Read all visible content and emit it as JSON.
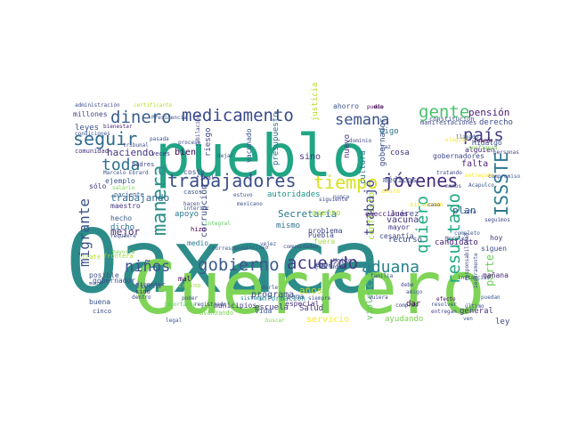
{
  "words": [
    {
      "text": "Oaxaca",
      "color": "#2d8c8a"
    },
    {
      "text": "Guerrero",
      "color": "#7ed456"
    },
    {
      "text": "pueblo",
      "color": "#21a585"
    },
    {
      "text": "gobierno",
      "color": "#3a5a8c"
    },
    {
      "text": "medicamento",
      "color": "#3a4a8a"
    },
    {
      "text": "trabajadores",
      "color": "#3c4f8a"
    },
    {
      "text": "seguir",
      "color": "#2f6b8e"
    },
    {
      "text": "migrante",
      "color": "#3b5289"
    },
    {
      "text": "manera",
      "color": "#2c8f8b"
    },
    {
      "text": "acuerdo",
      "color": "#443a83"
    },
    {
      "text": "niños",
      "color": "#3c4f8a"
    },
    {
      "text": "aduana",
      "color": "#26828e"
    },
    {
      "text": "tiempo",
      "color": "#d8e219"
    },
    {
      "text": "jóvenes",
      "color": "#472d7b"
    },
    {
      "text": "gente",
      "color": "#4ac16d"
    },
    {
      "text": "semana",
      "color": "#3b528b"
    },
    {
      "text": "país",
      "color": "#433e85"
    },
    {
      "text": "ISSSTE",
      "color": "#2a788e"
    },
    {
      "text": "dinero",
      "color": "#3a5e8c"
    },
    {
      "text": "toda",
      "color": "#2c728e"
    },
    {
      "text": "quiero",
      "color": "#22a884"
    },
    {
      "text": "resultado",
      "color": "#22a884"
    },
    {
      "text": "trabajo",
      "color": "#404688"
    },
    {
      "text": "parte",
      "color": "#6ccd5a"
    },
    {
      "text": "pensión",
      "color": "#482173"
    },
    {
      "text": "haciendo",
      "color": "#453781"
    },
    {
      "text": "corrupción",
      "color": "#3e4a89"
    },
    {
      "text": "Secretaría",
      "color": "#2a788e"
    },
    {
      "text": "autoridades",
      "color": "#21918c"
    },
    {
      "text": "mejor",
      "color": "#482677"
    },
    {
      "text": "trabajando",
      "color": "#31688e"
    },
    {
      "text": "vacuna",
      "color": "#46327e"
    },
    {
      "text": "plan",
      "color": "#365c8d"
    },
    {
      "text": "Juárez",
      "color": "#3e4989"
    },
    {
      "text": "mayor",
      "color": "#443983"
    },
    {
      "text": "recurso",
      "color": "#3d4e8a"
    },
    {
      "text": "cultura",
      "color": "#2e6f8e"
    },
    {
      "text": "sino",
      "color": "#46337f"
    },
    {
      "text": "programa",
      "color": "#3f4788"
    },
    {
      "text": "escuela",
      "color": "#453882"
    },
    {
      "text": "servicio",
      "color": "#fde725"
    },
    {
      "text": "años",
      "color": "#b5de2b"
    },
    {
      "text": "violencia",
      "color": "#5ec962"
    },
    {
      "text": "ayudando",
      "color": "#7ad151"
    },
    {
      "text": "conflicto",
      "color": "#a0da39"
    },
    {
      "text": "candidato",
      "color": "#482475"
    },
    {
      "text": "gobernador",
      "color": "#3b528b"
    },
    {
      "text": "Salud",
      "color": "#443a83"
    },
    {
      "text": "Puebla",
      "color": "#3e4989"
    },
    {
      "text": "mismo",
      "color": "#2c728e"
    },
    {
      "text": "cosa",
      "color": "#46337f"
    },
    {
      "text": "digo",
      "color": "#2e6e8e"
    },
    {
      "text": "falta",
      "color": "#481f70"
    },
    {
      "text": "leyes",
      "color": "#3b528b"
    },
    {
      "text": "bien",
      "color": "#440154"
    },
    {
      "text": "riesgo",
      "color": "#3f4788"
    },
    {
      "text": "hecho",
      "color": "#38588c"
    },
    {
      "text": "dicho",
      "color": "#2d708e"
    },
    {
      "text": "maestro",
      "color": "#46327e"
    },
    {
      "text": "apoyo",
      "color": "#2a788e"
    },
    {
      "text": "ejemplo",
      "color": "#3b528b"
    },
    {
      "text": "millones",
      "color": "#414487"
    },
    {
      "text": "derecho",
      "color": "#3e4a89"
    },
    {
      "text": "hoy",
      "color": "#472f7d"
    },
    {
      "text": "ley",
      "color": "#3f4889"
    },
    {
      "text": "dar",
      "color": "#440154"
    },
    {
      "text": "zona",
      "color": "#3b528b"
    },
    {
      "text": "municipios",
      "color": "#443983"
    },
    {
      "text": "problema",
      "color": "#3f4788"
    },
    {
      "text": "especial",
      "color": "#472c7a"
    },
    {
      "text": "elecciones",
      "color": "#482475"
    },
    {
      "text": "asunto",
      "color": "#b5de2b"
    },
    {
      "text": "fuera",
      "color": "#a2da37"
    },
    {
      "text": "general",
      "color": "#46327e"
    },
    {
      "text": "ahorro",
      "color": "#3b528b"
    },
    {
      "text": "sólo",
      "color": "#453581"
    },
    {
      "text": "siguen",
      "color": "#3e4989"
    },
    {
      "text": "mañana",
      "color": "#482475"
    },
    {
      "text": "embargo",
      "color": "#404588"
    },
    {
      "text": "información",
      "color": "#26828e"
    },
    {
      "text": "justicia",
      "color": "#b8de29"
    },
    {
      "text": "gobernadores",
      "color": "#3e4989"
    },
    {
      "text": "Hidalgo",
      "color": "#3b528b"
    },
    {
      "text": "alguien",
      "color": "#482576"
    },
    {
      "text": "nuevo",
      "color": "#463480"
    },
    {
      "text": "tierra",
      "color": "#3d4d8a"
    },
    {
      "text": "medio",
      "color": "#2a778e"
    },
    {
      "text": "médicos",
      "color": "#3b528b"
    },
    {
      "text": "presupuesto",
      "color": "#2e6f8e"
    },
    {
      "text": "vacunado",
      "color": "#3a548c"
    },
    {
      "text": "costo",
      "color": "#3f4788"
    },
    {
      "text": "manifestaciones",
      "color": "#3f4788"
    },
    {
      "text": "constitución",
      "color": "#3b528b"
    },
    {
      "text": "cesantía",
      "color": "#404688"
    },
    {
      "text": "vida",
      "color": "#3a548c"
    },
    {
      "text": "mal",
      "color": "#440154"
    },
    {
      "text": "hizo",
      "color": "#440154"
    },
    {
      "text": "director",
      "color": "#3b528b"
    },
    {
      "text": "buena",
      "color": "#3a548c"
    },
    {
      "text": "cinco",
      "color": "#3e4989"
    },
    {
      "text": "posible",
      "color": "#3b528b"
    },
    {
      "text": "sido",
      "color": "#482475"
    },
    {
      "text": "comunidad",
      "color": "#46337f"
    },
    {
      "text": "casos",
      "color": "#3a548c"
    },
    {
      "text": "final",
      "color": "#433e85"
    },
    {
      "text": "veces",
      "color": "#46337f"
    },
    {
      "text": "padres",
      "color": "#404688"
    },
    {
      "text": "salario",
      "color": "#7ad151"
    },
    {
      "text": "paciente",
      "color": "#35608d"
    },
    {
      "text": "requiere",
      "color": "#3e4a89"
    },
    {
      "text": "gobernador",
      "color": "#3b528b"
    },
    {
      "text": "frontera",
      "color": "#a0da39"
    },
    {
      "text": "trate",
      "color": "#b5de2b"
    },
    {
      "text": "ahora",
      "color": "#fde725"
    },
    {
      "text": "Unidos",
      "color": "#3f4788"
    },
    {
      "text": "siempre",
      "color": "#3b528b"
    },
    {
      "text": "Marcelo Ebrard",
      "color": "#3b528b"
    },
    {
      "text": "bienestar",
      "color": "#482475"
    },
    {
      "text": "administración",
      "color": "#3e4989"
    },
    {
      "text": "certificante",
      "color": "#b5de2b"
    },
    {
      "text": "tratando",
      "color": "#3e4989"
    },
    {
      "text": "llamado",
      "color": "#3b528b"
    },
    {
      "text": "cuando",
      "color": "#440154"
    },
    {
      "text": "confianza",
      "color": "#7ad151"
    },
    {
      "text": "seguimos",
      "color": "#3f4788"
    },
    {
      "text": "completo",
      "color": "#3b528b"
    },
    {
      "text": "último",
      "color": "#3e4989"
    },
    {
      "text": "puedan",
      "color": "#3a548c"
    },
    {
      "text": "entregan",
      "color": "#404688"
    },
    {
      "text": "efecto",
      "color": "#440154"
    },
    {
      "text": "resolver",
      "color": "#3b528b"
    },
    {
      "text": "entregado",
      "color": "#fde725"
    },
    {
      "text": "registrado",
      "color": "#3f4788"
    },
    {
      "text": "avanzando",
      "color": "#7ad151"
    },
    {
      "text": "camino",
      "color": "#a0da39"
    },
    {
      "text": "poder",
      "color": "#3e4989"
    },
    {
      "text": "importante",
      "color": "#5ec962"
    },
    {
      "text": "sistema",
      "color": "#26828e"
    },
    {
      "text": "comunidades",
      "color": "#3e4989"
    },
    {
      "text": "incluso",
      "color": "#3b528b"
    },
    {
      "text": "correspondo",
      "color": "#3b528b"
    },
    {
      "text": "integral",
      "color": "#5ec962"
    },
    {
      "text": "mayoría",
      "color": "#7ad151"
    },
    {
      "text": "tribunal",
      "color": "#3f4788"
    },
    {
      "text": "condiciones",
      "color": "#3b528b"
    },
    {
      "text": "jubilación",
      "color": "#3f4788"
    },
    {
      "text": "proceso",
      "color": "#3e4989"
    },
    {
      "text": "amigo",
      "color": "#3b528b"
    },
    {
      "text": "nunca",
      "color": "#3a548c"
    },
    {
      "text": "interior",
      "color": "#3b528b"
    },
    {
      "text": "mucho",
      "color": "#3e4989"
    },
    {
      "text": "puedo",
      "color": "#440154"
    },
    {
      "text": "pasada",
      "color": "#3b528b"
    },
    {
      "text": "menos",
      "color": "#3f4788"
    },
    {
      "text": "Acapulco",
      "color": "#3b528b"
    },
    {
      "text": "siguiente",
      "color": "#3f4788"
    },
    {
      "text": "dentro",
      "color": "#3e4989"
    },
    {
      "text": "familia",
      "color": "#3b528b"
    },
    {
      "text": "compras",
      "color": "#3f4788"
    },
    {
      "text": "vejez",
      "color": "#3a548c"
    },
    {
      "text": "mexicano",
      "color": "#3b528b"
    },
    {
      "text": "dominio",
      "color": "#3f4788"
    },
    {
      "text": "elegida",
      "color": "#fde725"
    },
    {
      "text": "situación",
      "color": "#fde725"
    },
    {
      "text": "Presidencia",
      "color": "#3b528b"
    },
    {
      "text": "hacen",
      "color": "#3e4989"
    },
    {
      "text": "dejar",
      "color": "#3f4788"
    },
    {
      "text": "estuvo",
      "color": "#3b528b"
    },
    {
      "text": "zeta",
      "color": "#3b528b"
    },
    {
      "text": "personas",
      "color": "#3e4989"
    },
    {
      "text": "compromiso",
      "color": "#3b528b"
    },
    {
      "text": "quiera",
      "color": "#3f4788"
    },
    {
      "text": "seguramente",
      "color": "#3b528b"
    },
    {
      "text": "responsabilidad",
      "color": "#3f4788"
    },
    {
      "text": "dio",
      "color": "#440154"
    },
    {
      "text": "darle",
      "color": "#3b528b"
    },
    {
      "text": "debe",
      "color": "#3f4788"
    },
    {
      "text": "buscar",
      "color": "#7ad151"
    },
    {
      "text": "legal",
      "color": "#3b528b"
    },
    {
      "text": "Morelos",
      "color": "#3b528b"
    },
    {
      "text": "instancias",
      "color": "#3f4788"
    },
    {
      "text": "jubilados",
      "color": "#3b528b"
    },
    {
      "text": "ven",
      "color": "#3b528b"
    },
    {
      "text": "caso",
      "color": "#3f4788"
    },
    {
      "text": "paz",
      "color": "#3e4989"
    }
  ]
}
